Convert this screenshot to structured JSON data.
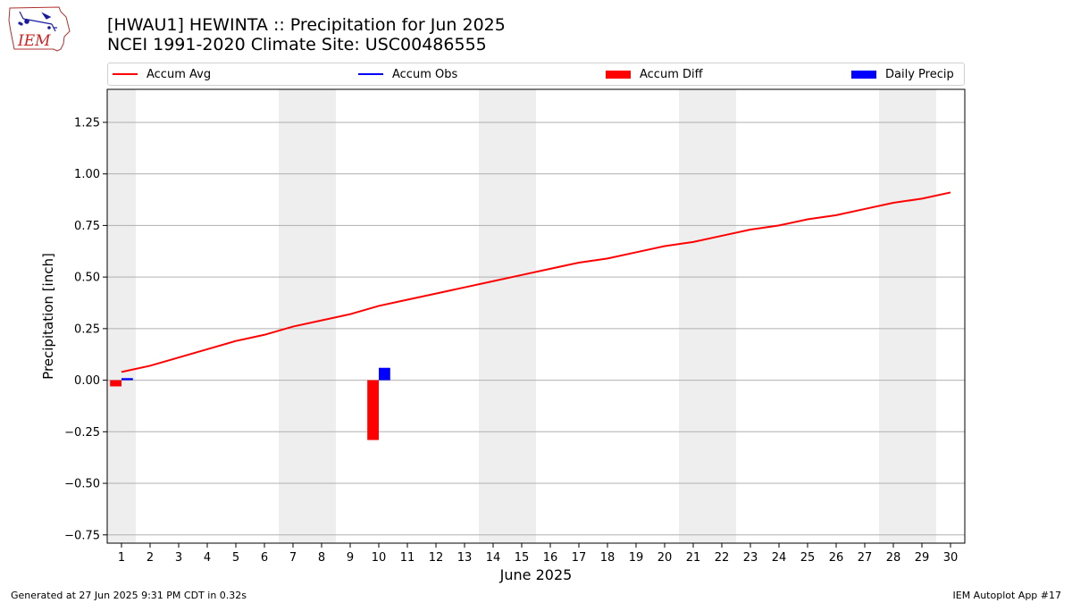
{
  "header": {
    "title": "[HWAU1] HEWINTA :: Precipitation for Jun 2025",
    "subtitle": "NCEI 1991-2020 Climate Site: USC00486555",
    "logo_text": "IEM"
  },
  "legend": [
    {
      "label": "Accum Avg",
      "kind": "line",
      "color": "#ff0000"
    },
    {
      "label": "Accum Obs",
      "kind": "line",
      "color": "#0000ff"
    },
    {
      "label": "Accum Diff",
      "kind": "bar",
      "color": "#ff0000"
    },
    {
      "label": "Daily Precip",
      "kind": "bar",
      "color": "#0000ff"
    }
  ],
  "footer": {
    "generated": "Generated at 27 Jun 2025 9:31 PM CDT in 0.32s",
    "app": "IEM Autoplot App #17"
  },
  "chart_data": {
    "type": "line",
    "xlabel": "June 2025",
    "ylabel": "Precipitation [inch]",
    "xlim": [
      0.5,
      30.5
    ],
    "ylim": [
      -0.79,
      1.41
    ],
    "yticks": [
      -0.75,
      -0.5,
      -0.25,
      0.0,
      0.25,
      0.5,
      0.75,
      1.0,
      1.25
    ],
    "ytick_labels": [
      "−0.75",
      "−0.50",
      "−0.25",
      "0.00",
      "0.25",
      "0.50",
      "0.75",
      "1.00",
      "1.25"
    ],
    "xticks": [
      1,
      2,
      3,
      4,
      5,
      6,
      7,
      8,
      9,
      10,
      11,
      12,
      13,
      14,
      15,
      16,
      17,
      18,
      19,
      20,
      21,
      22,
      23,
      24,
      25,
      26,
      27,
      28,
      29,
      30
    ],
    "grid": "horizontal",
    "weekend_days": [
      1,
      7,
      8,
      14,
      15,
      21,
      22,
      28,
      29
    ],
    "weekend_color": "#eeeeee",
    "series": [
      {
        "name": "Accum Avg",
        "type": "line",
        "color": "#ff0000",
        "x": [
          1,
          2,
          3,
          4,
          5,
          6,
          7,
          8,
          9,
          10,
          11,
          12,
          13,
          14,
          15,
          16,
          17,
          18,
          19,
          20,
          21,
          22,
          23,
          24,
          25,
          26,
          27,
          28,
          29,
          30
        ],
        "values": [
          0.04,
          0.07,
          0.11,
          0.15,
          0.19,
          0.22,
          0.26,
          0.29,
          0.32,
          0.36,
          0.39,
          0.42,
          0.45,
          0.48,
          0.51,
          0.54,
          0.57,
          0.59,
          0.62,
          0.65,
          0.67,
          0.7,
          0.73,
          0.75,
          0.78,
          0.8,
          0.83,
          0.86,
          0.88,
          0.91
        ]
      },
      {
        "name": "Accum Diff",
        "type": "bar",
        "color": "#ff0000",
        "x": [
          1,
          10
        ],
        "values": [
          -0.03,
          -0.29
        ]
      },
      {
        "name": "Daily Precip",
        "type": "bar",
        "color": "#0000ff",
        "x": [
          1,
          10
        ],
        "values": [
          0.01,
          0.06
        ]
      }
    ]
  }
}
